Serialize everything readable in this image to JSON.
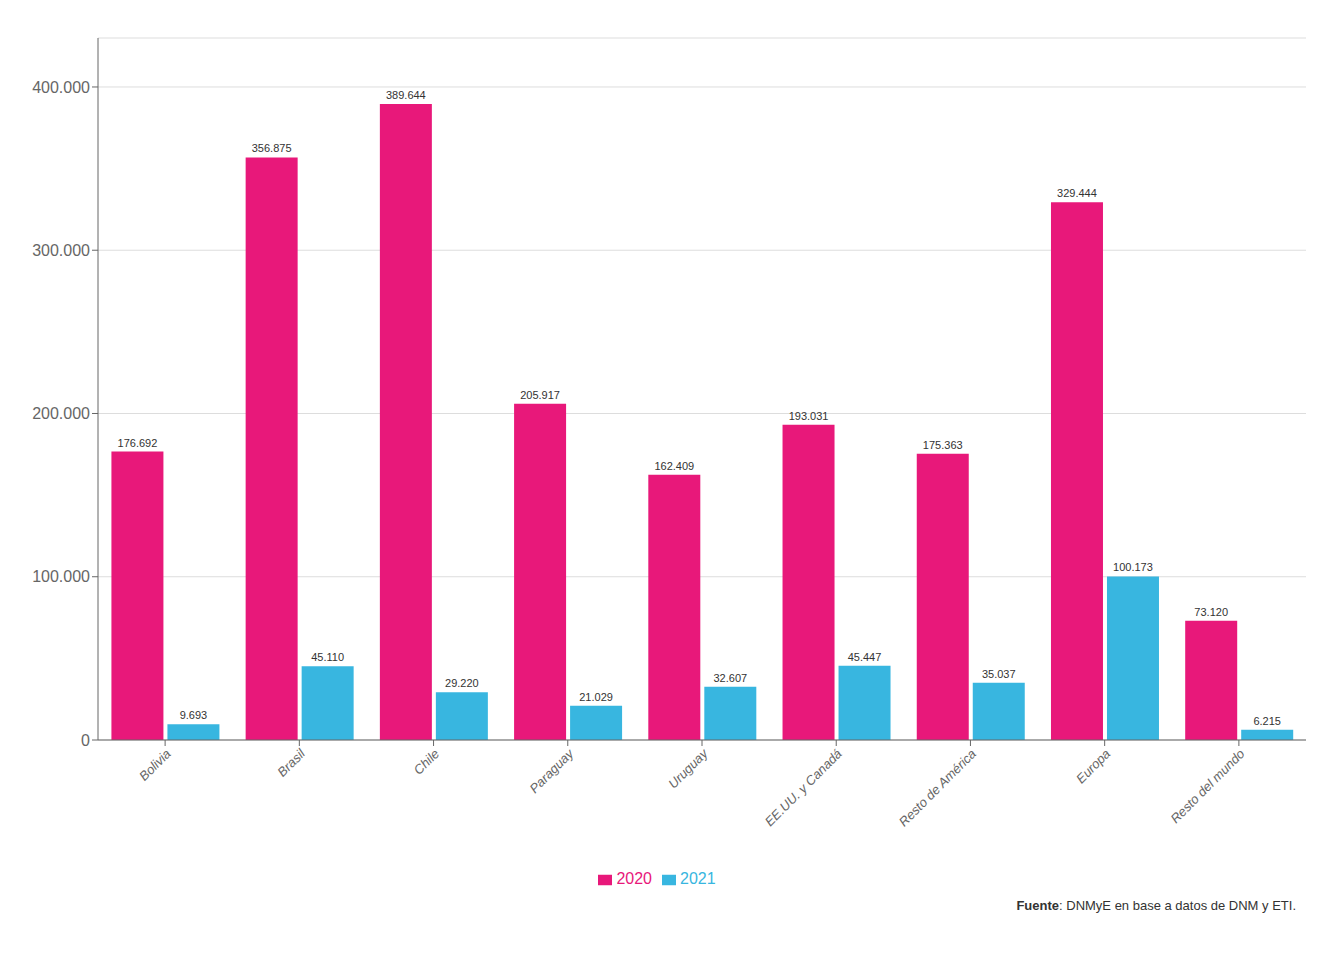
{
  "chart_data": {
    "type": "bar",
    "categories": [
      "Bolivia",
      "Brasil",
      "Chile",
      "Paraguay",
      "Uruguay",
      "EE.UU. y Canadá",
      "Resto de América",
      "Europa",
      "Resto del mundo"
    ],
    "series": [
      {
        "name": "2020",
        "color": "#E8187A",
        "values": [
          176692,
          356875,
          389644,
          205917,
          162409,
          193031,
          175363,
          329444,
          73120
        ],
        "value_labels": [
          "176.692",
          "356.875",
          "389.644",
          "205.917",
          "162.409",
          "193.031",
          "175.363",
          "329.444",
          "73.120"
        ]
      },
      {
        "name": "2021",
        "color": "#38B6E0",
        "values": [
          9693,
          45110,
          29220,
          21029,
          32607,
          45447,
          35037,
          100173,
          6215
        ],
        "value_labels": [
          "9.693",
          "45.110",
          "29.220",
          "21.029",
          "32.607",
          "45.447",
          "35.037",
          "100.173",
          "6.215"
        ]
      }
    ],
    "ylim": [
      0,
      430000
    ],
    "yticks": [
      0,
      {
        "value": 100000,
        "label": "100.000"
      },
      {
        "value": 200000,
        "label": "200.000"
      },
      {
        "value": 300000,
        "label": "300.000"
      },
      {
        "value": 400000,
        "label": "400.000"
      }
    ],
    "grid": true,
    "legend": "bottom",
    "data_labels": true,
    "annotations": [
      "Fuente: DNMyE en base a datos de DNM y ETI."
    ]
  }
}
